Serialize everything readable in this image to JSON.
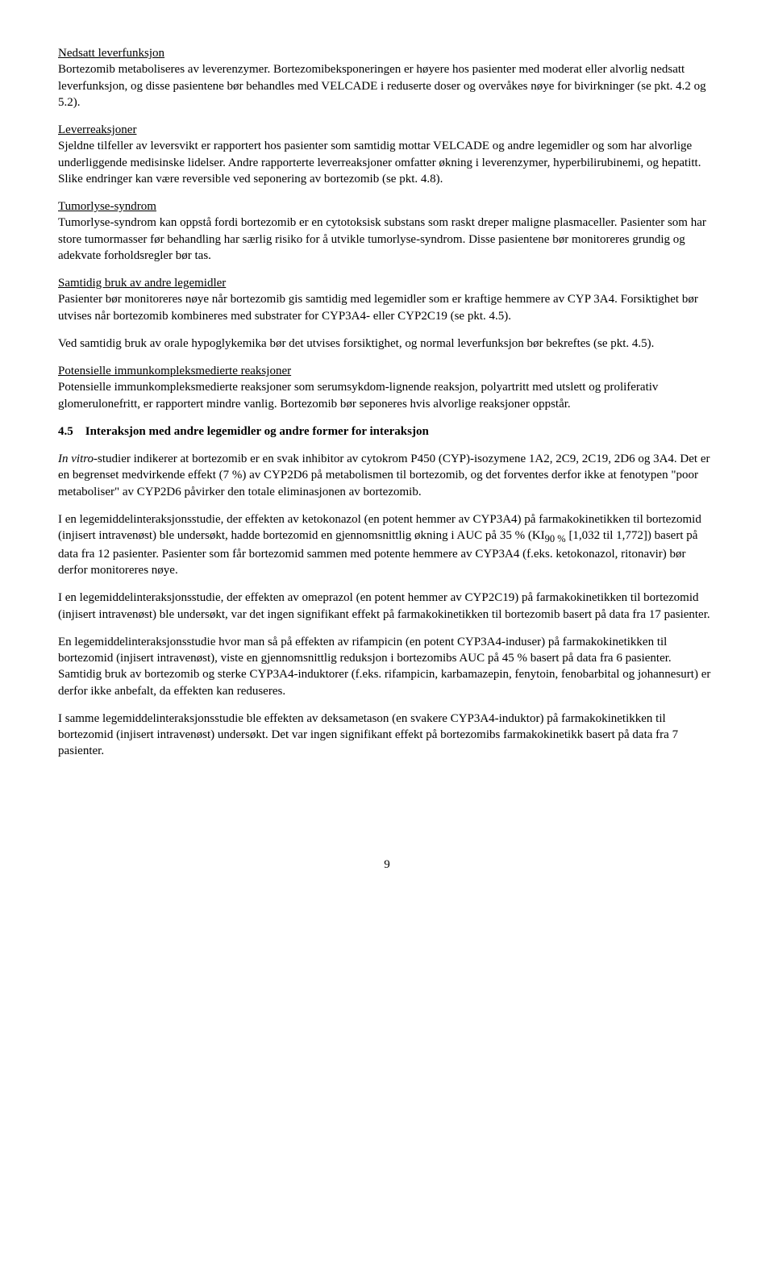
{
  "h1": "Nedsatt leverfunksjon",
  "p1": "Bortezomib metaboliseres av leverenzymer. Bortezomibeksponeringen er høyere hos pasienter med moderat eller alvorlig nedsatt leverfunksjon, og disse pasientene bør behandles med VELCADE i reduserte doser og overvåkes nøye for bivirkninger (se pkt. 4.2 og 5.2).",
  "h2": "Leverreaksjoner",
  "p2": "Sjeldne tilfeller av leversvikt er rapportert hos pasienter som samtidig mottar VELCADE og andre legemidler og som har alvorlige underliggende medisinske lidelser. Andre rapporterte leverreaksjoner omfatter økning i leverenzymer, hyperbilirubinemi, og hepatitt. Slike endringer kan være reversible ved seponering av bortezomib (se pkt. 4.8).",
  "h3": "Tumorlyse-syndrom",
  "p3": "Tumorlyse-syndrom kan oppstå fordi bortezomib er en cytotoksisk substans som raskt dreper maligne plasmaceller. Pasienter som har store tumormasser før behandling har særlig risiko for å utvikle tumorlyse-syndrom. Disse pasientene bør monitoreres grundig og adekvate forholdsregler bør tas.",
  "h4": "Samtidig bruk av andre legemidler",
  "p4": "Pasienter bør monitoreres nøye når bortezomib gis samtidig med legemidler som er kraftige hemmere av CYP 3A4. Forsiktighet bør utvises når bortezomib kombineres med substrater for CYP3A4- eller CYP2C19 (se pkt. 4.5).",
  "p5": "Ved samtidig bruk av orale hypoglykemika bør det utvises forsiktighet, og normal leverfunksjon bør bekreftes (se pkt. 4.5).",
  "h5": "Potensielle immunkompleksmedierte reaksjoner",
  "p6": "Potensielle immunkompleksmedierte reaksjoner som serumsykdom-lignende reaksjon, polyartritt med utslett og proliferativ glomerulonefritt, er rapportert mindre vanlig. Bortezomib bør seponeres hvis alvorlige reaksjoner oppstår.",
  "sec45": "4.5 Interaksjon med andre legemidler og andre former for interaksjon",
  "p7a": "In vitro",
  "p7b": "-studier indikerer at bortezomib er en svak inhibitor av cytokrom P450 (CYP)-isozymene 1A2, 2C9, 2C19, 2D6 og 3A4. Det er en begrenset medvirkende effekt (7 %) av CYP2D6 på metabolismen til bortezomib, og det forventes derfor ikke at fenotypen \"poor metaboliser\" av CYP2D6 påvirker den totale eliminasjonen av bortezomib.",
  "p8a": "I en legemiddelinteraksjonsstudie, der effekten av ketokonazol (en potent hemmer av CYP3A4) på farmakokinetikken til bortezomid (injisert intravenøst) ble undersøkt, hadde bortezomid en gjennomsnittlig økning i AUC på 35 % (KI",
  "p8sub": "90 %",
  "p8b": " [1,032 til 1,772]) basert på data fra 12 pasienter. Pasienter som får bortezomid sammen med potente hemmere av CYP3A4 (f.eks. ketokonazol, ritonavir) bør derfor monitoreres nøye.",
  "p9": "I en legemiddelinteraksjonsstudie, der effekten av omeprazol (en potent hemmer av CYP2C19) på farmakokinetikken til bortezomid (injisert intravenøst) ble undersøkt, var det ingen signifikant effekt på farmakokinetikken til bortezomib basert på data fra 17 pasienter.",
  "p10": "En legemiddelinteraksjonsstudie hvor man så på effekten av rifampicin (en potent CYP3A4-induser) på farmakokinetikken til bortezomid (injisert intravenøst), viste en gjennomsnittlig reduksjon i bortezomibs AUC på 45 % basert på data fra 6 pasienter. Samtidig bruk av bortezomib og sterke CYP3A4-induktorer (f.eks. rifampicin, karbamazepin, fenytoin, fenobarbital og johannesurt) er derfor ikke anbefalt, da effekten kan reduseres.",
  "p11": "I samme legemiddelinteraksjonsstudie ble effekten av deksametason (en svakere CYP3A4-induktor) på farmakokinetikken til bortezomid (injisert intravenøst) undersøkt. Det var ingen signifikant effekt på bortezomibs farmakokinetikk basert på data fra 7 pasienter.",
  "pageNum": "9"
}
